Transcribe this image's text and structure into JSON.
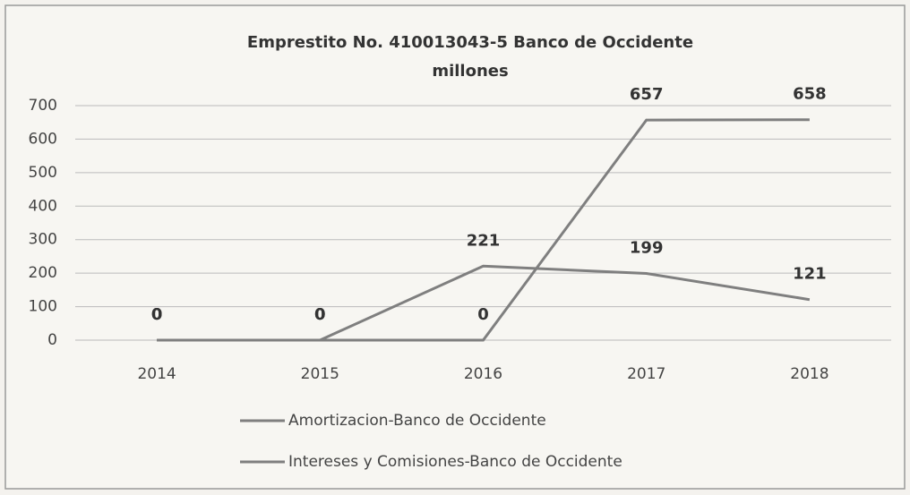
{
  "chart_data": {
    "type": "line",
    "title": "Emprestito No. 410013043-5 Banco de Occidente",
    "subtitle": "millones",
    "categories": [
      "2014",
      "2015",
      "2016",
      "2017",
      "2018"
    ],
    "series": [
      {
        "name": "Amortizacion-Banco de Occidente",
        "color": "#7f7f7f",
        "values": [
          0,
          0,
          0,
          657,
          658
        ]
      },
      {
        "name": "Intereses y Comisiones-Banco de Occidente",
        "color": "#7f7f7f",
        "values": [
          0,
          0,
          221,
          199,
          121
        ]
      }
    ],
    "ylim": [
      0,
      700
    ],
    "yticks": [
      0,
      100,
      200,
      300,
      400,
      500,
      600,
      700
    ],
    "grid": true,
    "legend": "bottom"
  }
}
